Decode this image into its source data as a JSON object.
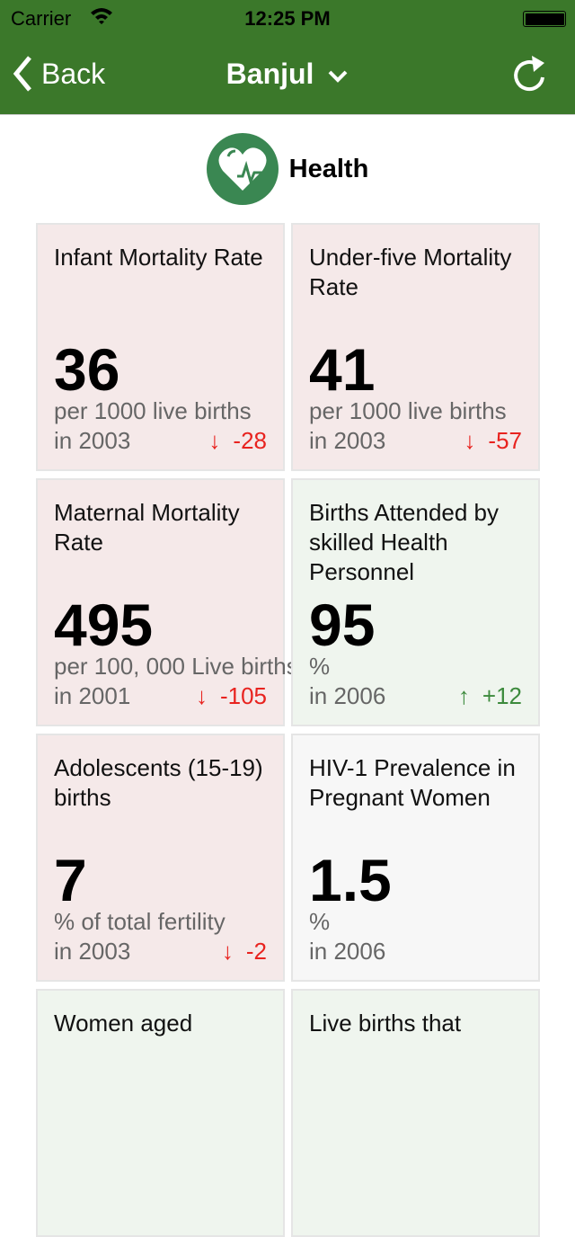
{
  "status": {
    "carrier": "Carrier",
    "time": "12:25 PM"
  },
  "nav": {
    "back": "Back",
    "title": "Banjul"
  },
  "section": {
    "title": "Health"
  },
  "colors": {
    "nav": "#3b782a",
    "down": "#e8231f",
    "up": "#3c8a3c"
  },
  "cards": [
    {
      "title": "Infant Mortality Rate",
      "value": "36",
      "unit": "per 1000 live births",
      "year": "in 2003",
      "change": "-28",
      "direction": "down"
    },
    {
      "title": "Under-five Mortality Rate",
      "value": "41",
      "unit": "per 1000 live births",
      "year": "in 2003",
      "change": "-57",
      "direction": "down"
    },
    {
      "title": "Maternal Mortality Rate",
      "value": "495",
      "unit": "per 100, 000 Live births",
      "year": "in 2001",
      "change": "-105",
      "direction": "down"
    },
    {
      "title": "Births Attended by skilled Health Personnel",
      "value": "95",
      "unit": "%",
      "year": "in 2006",
      "change": "+12",
      "direction": "up"
    },
    {
      "title": "Adolescents (15-19) births",
      "value": "7",
      "unit": "% of total fertility",
      "year": "in 2003",
      "change": "-2",
      "direction": "down"
    },
    {
      "title": "HIV-1 Prevalence in Pregnant Women",
      "value": "1.5",
      "unit": "%",
      "year": "in 2006"
    },
    {
      "title": "Women aged",
      "value": "",
      "unit": "",
      "year": ""
    },
    {
      "title": "Live births that",
      "value": "",
      "unit": "",
      "year": ""
    }
  ]
}
